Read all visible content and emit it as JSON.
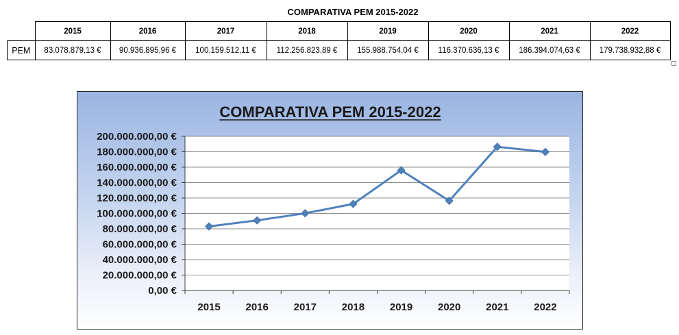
{
  "table": {
    "title": "COMPARATIVA PEM 2015-2022",
    "row_label": "PEM",
    "years": [
      "2015",
      "2016",
      "2017",
      "2018",
      "2019",
      "2020",
      "2021",
      "2022"
    ],
    "values": [
      "83.078.879,13 €",
      "90.936.895,96 €",
      "100.159.512,11 €",
      "112.256.823,89 €",
      "155.988.754,04 €",
      "116.370.636,13 €",
      "186.394.074,63 €",
      "179.738.932,88 €"
    ]
  },
  "chart_data": {
    "type": "line",
    "title": "COMPARATIVA PEM 2015-2022",
    "categories": [
      "2015",
      "2016",
      "2017",
      "2018",
      "2019",
      "2020",
      "2021",
      "2022"
    ],
    "series": [
      {
        "values": [
          83078879.13,
          90936895.96,
          100159512.11,
          112256823.89,
          155988754.04,
          116370636.13,
          186394074.63,
          179738932.88
        ]
      }
    ],
    "ylim": [
      0,
      200000000
    ],
    "ytick_step": 20000000,
    "ytick_labels": [
      "0,00 €",
      "20.000.000,00 €",
      "40.000.000,00 €",
      "60.000.000,00 €",
      "80.000.000,00 €",
      "100.000.000,00 €",
      "120.000.000,00 €",
      "140.000.000,00 €",
      "160.000.000,00 €",
      "180.000.000,00 €",
      "200.000.000,00 €"
    ],
    "grid": true,
    "legend": "none",
    "colors": {
      "line": "#4f81bd",
      "plot_bg": "#ffffff",
      "grid": "#8c8c8c"
    }
  }
}
